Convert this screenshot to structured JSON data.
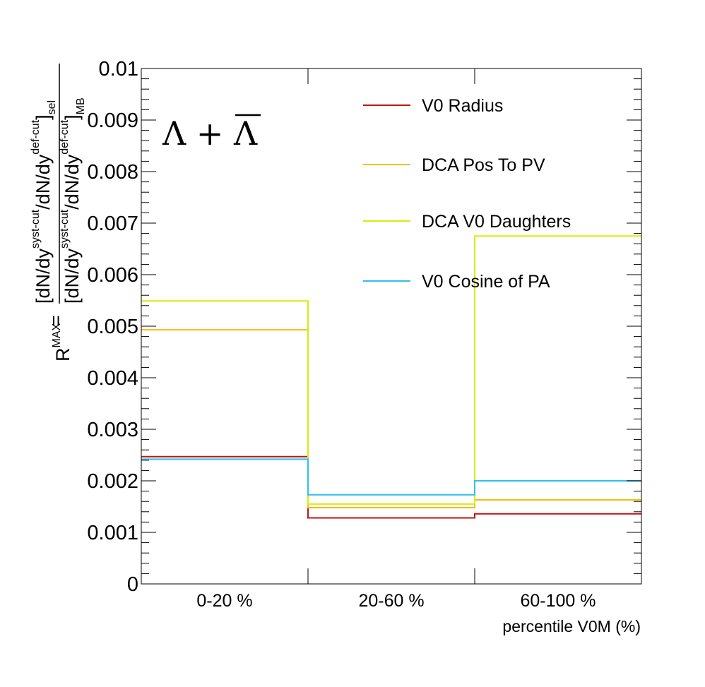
{
  "chart_data": {
    "type": "line",
    "step": true,
    "annotation": "Λ + Λ̄",
    "annotation_main": "Λ + ",
    "annotation_bar": "Λ",
    "xlabel": "percentile V0M (%)",
    "ylabel": {
      "prefix": "R",
      "prefix_sup": "MAX",
      "equals": "=",
      "numerator": "[dN/dy^{syst-cut}/dN/dy^{def-cut}]_{sel}",
      "denominator": "[dN/dy^{syst-cut}/dN/dy^{def-cut}]_{MB}",
      "dndy": "[dN/dy",
      "syst": "syst-cut",
      "slash": "/dN/dy",
      "def": "def-cut",
      "close": "]",
      "sel": "sel",
      "mb": "MB"
    },
    "categories": [
      "0-20 %",
      "20-60 %",
      "60-100 %"
    ],
    "ylim": [
      0,
      0.01
    ],
    "yticks": [
      "0",
      "0.001",
      "0.002",
      "0.003",
      "0.004",
      "0.005",
      "0.006",
      "0.007",
      "0.008",
      "0.009",
      "0.01"
    ],
    "grid": false,
    "legend_position": "top-right",
    "series": [
      {
        "name": "V0 Radius",
        "color": "#c0150f",
        "values": [
          0.00247,
          0.00128,
          0.00136
        ]
      },
      {
        "name": "DCA Pos To PV",
        "color": "#f6bd0e",
        "values": [
          0.00493,
          0.00148,
          0.00163
        ]
      },
      {
        "name": "DCA V0 Daughters",
        "color": "#d5ec0c",
        "values": [
          0.00549,
          0.00155,
          0.00675
        ]
      },
      {
        "name": "V0 Cosine of PA",
        "color": "#2fbdf0",
        "values": [
          0.00242,
          0.00173,
          0.002
        ]
      }
    ]
  }
}
